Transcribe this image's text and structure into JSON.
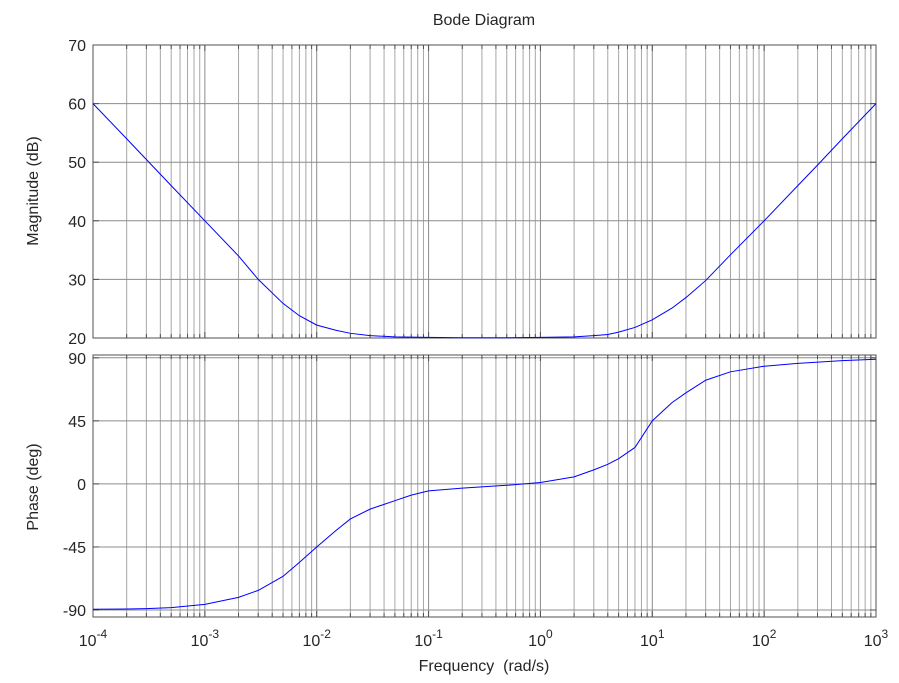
{
  "chart_data": {
    "type": "line",
    "title": "Bode Diagram",
    "xlabel": "Frequency  (rad/s)",
    "x_scale": "log",
    "xlim": [
      0.0001,
      1000
    ],
    "grid": true,
    "x_tick_labels": [
      {
        "base": "10",
        "exp": "-4"
      },
      {
        "base": "10",
        "exp": "-3"
      },
      {
        "base": "10",
        "exp": "-2"
      },
      {
        "base": "10",
        "exp": "-1"
      },
      {
        "base": "10",
        "exp": "0"
      },
      {
        "base": "10",
        "exp": "1"
      },
      {
        "base": "10",
        "exp": "2"
      },
      {
        "base": "10",
        "exp": "3"
      }
    ],
    "series_color": "#0000ff",
    "panels": [
      {
        "ylabel": "Magnitude (dB)",
        "ylim": [
          20,
          70
        ],
        "yticks": [
          20,
          30,
          40,
          50,
          60,
          70
        ],
        "ytick_labels": [
          "20",
          "30",
          "40",
          "50",
          "60",
          "70"
        ],
        "series": [
          {
            "x": [
              0.0001,
              0.0002,
              0.0005,
              0.001,
              0.002,
              0.003,
              0.005,
              0.007,
              0.01,
              0.015,
              0.02,
              0.03,
              0.05,
              0.1,
              0.2,
              0.5,
              1,
              2,
              3,
              4,
              5,
              7,
              10,
              15,
              20,
              30,
              50,
              100,
              200,
              300,
              500,
              1000
            ],
            "y": [
              60,
              54,
              46,
              40,
              34,
              30,
              25.9,
              23.8,
              22.2,
              21.3,
              20.8,
              20.4,
              20.2,
              20.1,
              20.05,
              20.05,
              20.1,
              20.2,
              20.4,
              20.6,
              21.0,
              21.8,
              23.1,
              25.1,
              26.9,
              29.8,
              34.2,
              40,
              46,
              49.5,
              54,
              60
            ]
          }
        ]
      },
      {
        "ylabel": "Phase (deg)",
        "ylim": [
          -95,
          92
        ],
        "yticks": [
          -90,
          -45,
          0,
          45,
          90
        ],
        "ytick_labels": [
          "-90",
          "-45",
          "0",
          "45",
          "90"
        ],
        "series": [
          {
            "x": [
              0.0001,
              0.0002,
              0.0003,
              0.0005,
              0.001,
              0.002,
              0.003,
              0.005,
              0.007,
              0.01,
              0.015,
              0.02,
              0.03,
              0.05,
              0.07,
              0.1,
              0.2,
              0.5,
              1,
              2,
              3,
              4,
              5,
              7,
              10,
              15,
              20,
              30,
              50,
              100,
              200,
              500,
              1000
            ],
            "y": [
              -89.5,
              -89.3,
              -89,
              -88.3,
              -86,
              -81,
              -76,
              -66,
              -56,
              -45,
              -33,
              -25,
              -18,
              -12,
              -8,
              -5,
              -3,
              -1,
              1,
              5,
              10,
              14,
              18,
              26,
              45,
              58,
              65,
              74,
              80,
              84,
              86,
              88,
              89
            ]
          }
        ]
      }
    ]
  }
}
